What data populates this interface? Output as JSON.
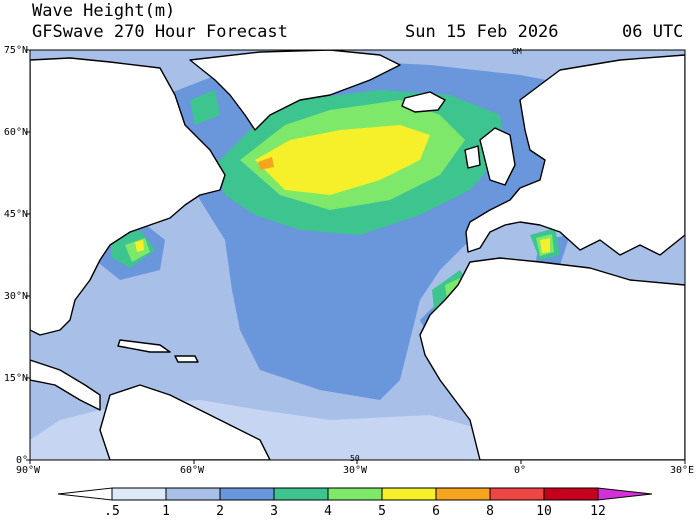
{
  "header": {
    "title": "Wave Height(m)",
    "model": "GFSwave 270 Hour Forecast",
    "date": "Sun 15 Feb 2026",
    "time": "06 UTC"
  },
  "map": {
    "lat_labels": [
      "75°N",
      "60°N",
      "45°N",
      "30°N",
      "15°N",
      "0°"
    ],
    "lon_labels": [
      "90°W",
      "60°W",
      "30°W",
      "0°",
      "30°E"
    ],
    "land_color": "#ffffff",
    "coast_color": "#000000",
    "markers": {
      "top": "GM",
      "bottom": "50"
    }
  },
  "colorbar": {
    "levels": [
      ".5",
      "1",
      "2",
      "3",
      "4",
      "5",
      "6",
      "8",
      "10",
      "12"
    ],
    "colors": [
      "#ffffff",
      "#dde8f8",
      "#a8bfe8",
      "#6a96dc",
      "#3dc48f",
      "#7ee86a",
      "#f5f02a",
      "#f7a51f",
      "#f04545",
      "#c4001c",
      "#d430d8"
    ]
  }
}
